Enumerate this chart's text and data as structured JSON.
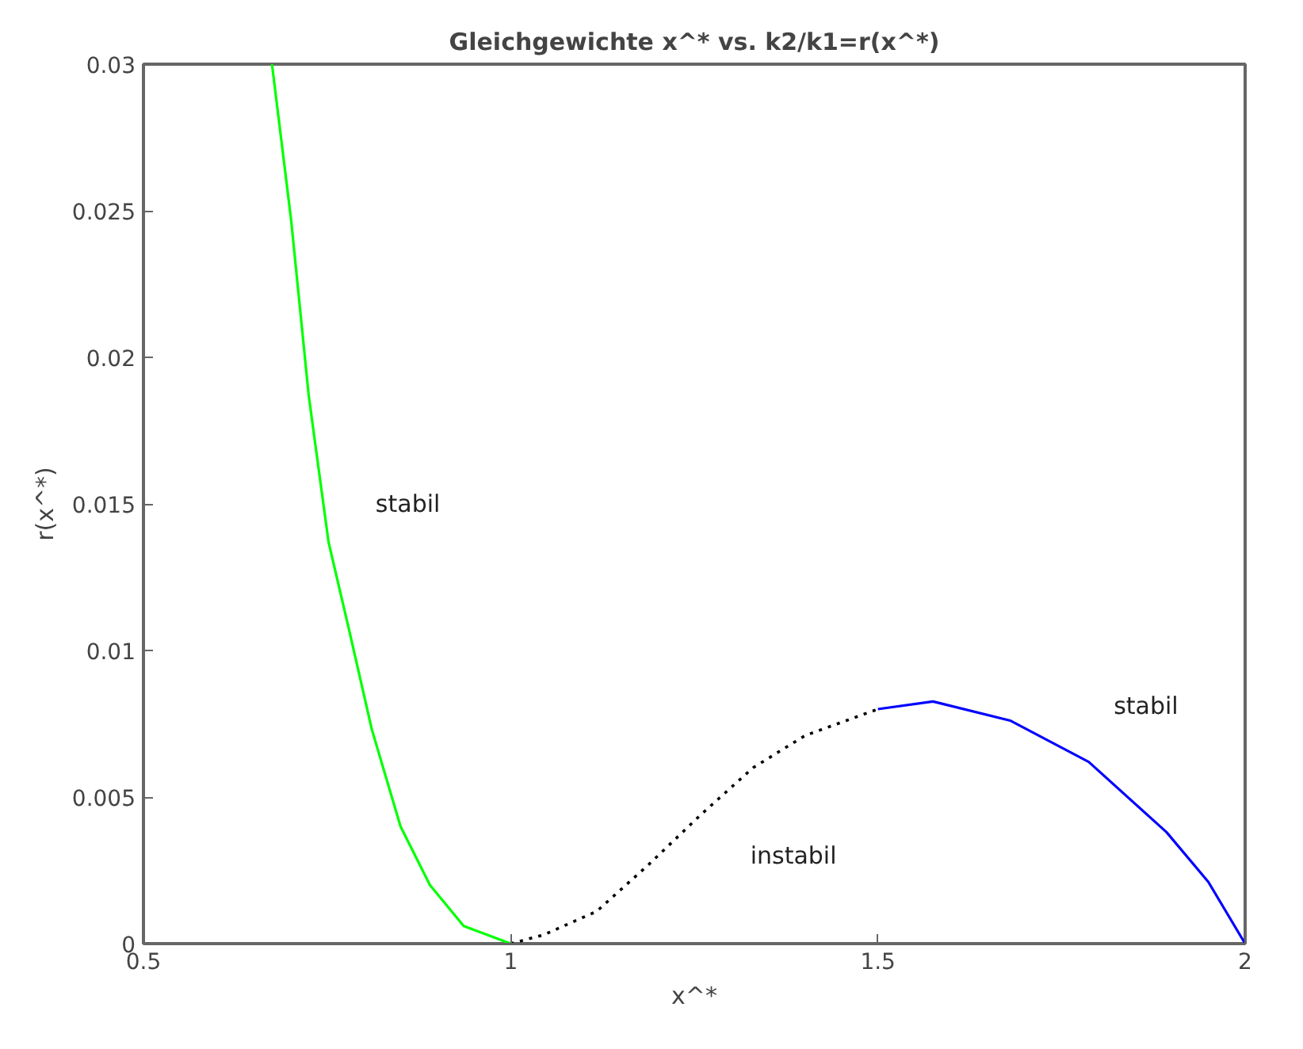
{
  "chart_data": {
    "type": "line",
    "title": "Gleichgewichte x^* vs. k2/k1=r(x^*)",
    "xlabel": "x^*",
    "ylabel": "r(x^*)",
    "xlim": [
      0.5,
      2
    ],
    "ylim": [
      0,
      0.03
    ],
    "xticks": [
      0.5,
      1,
      1.5,
      2
    ],
    "yticks": [
      0,
      0.005,
      0.01,
      0.015,
      0.02,
      0.025,
      0.03
    ],
    "grid": false,
    "marker": "none",
    "series": [
      {
        "color": "#00ff00",
        "line_style": "solid",
        "x": [
          0.675,
          0.701,
          0.725,
          0.752,
          0.78,
          0.811,
          0.85,
          0.89,
          0.936,
          1.0
        ],
        "values": [
          0.03,
          0.0247,
          0.0187,
          0.0137,
          0.0107,
          0.0073,
          0.004,
          0.002,
          0.0006,
          0
        ]
      },
      {
        "color": "#000000",
        "line_style": "dotted",
        "x": [
          1.0,
          1.045,
          1.117,
          1.188,
          1.259,
          1.33,
          1.401,
          1.5
        ],
        "values": [
          0,
          0.0003,
          0.0011,
          0.0027,
          0.0044,
          0.006,
          0.0071,
          0.008
        ]
      },
      {
        "color": "#0000ff",
        "line_style": "solid",
        "x": [
          1.5,
          1.575,
          1.681,
          1.787,
          1.893,
          1.95,
          2.0
        ],
        "values": [
          0.008,
          0.00826,
          0.0076,
          0.0062,
          0.0038,
          0.0021,
          0
        ]
      }
    ],
    "annotations": [
      "stabil",
      "instabil",
      "stabil"
    ]
  }
}
